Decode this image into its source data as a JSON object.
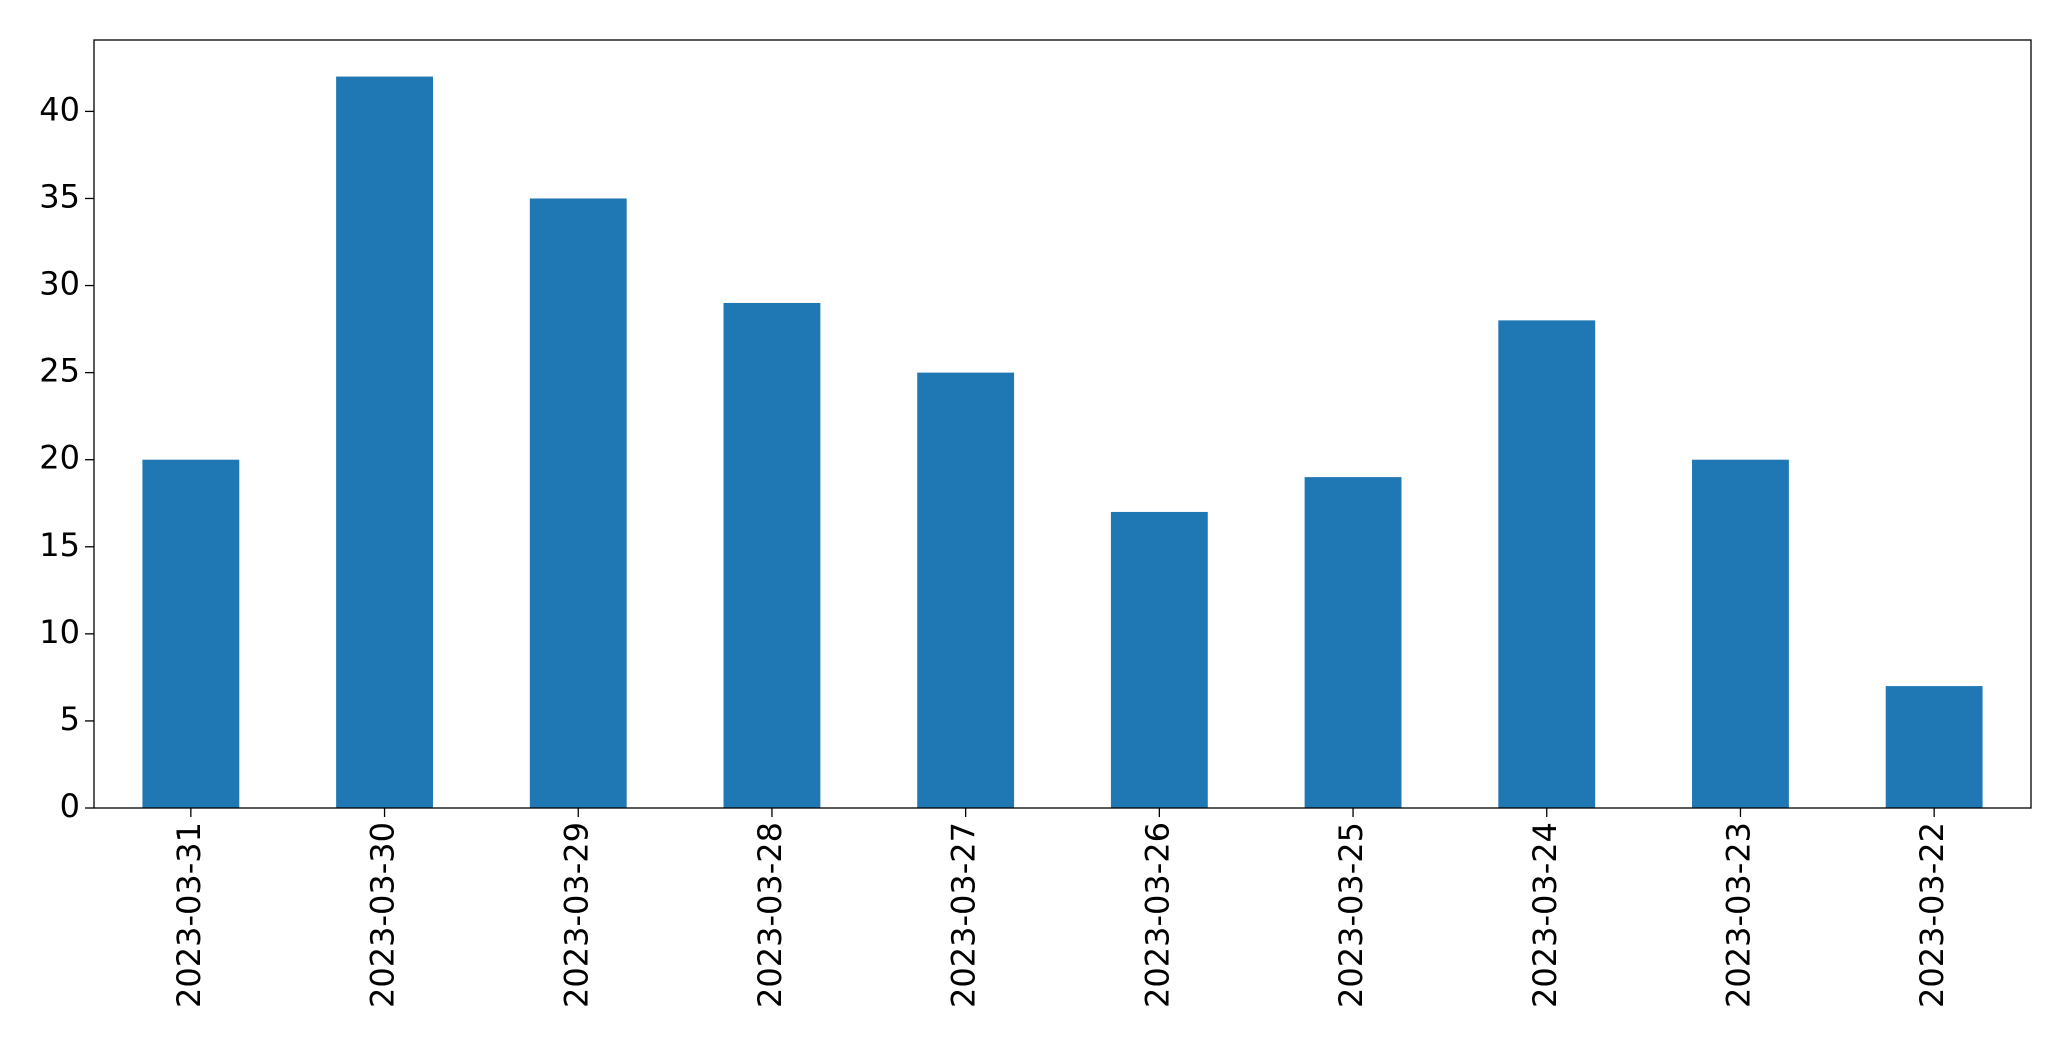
{
  "chart_data": {
    "type": "bar",
    "categories": [
      "2023-03-31",
      "2023-03-30",
      "2023-03-29",
      "2023-03-28",
      "2023-03-27",
      "2023-03-26",
      "2023-03-25",
      "2023-03-24",
      "2023-03-23",
      "2023-03-22"
    ],
    "values": [
      20,
      42,
      35,
      29,
      25,
      17,
      19,
      28,
      20,
      7
    ],
    "color": "#1f77b4",
    "ylim": [
      0,
      44.1
    ],
    "yticks": [
      0,
      5,
      10,
      15,
      20,
      25,
      30,
      35,
      40
    ],
    "grid": false
  }
}
